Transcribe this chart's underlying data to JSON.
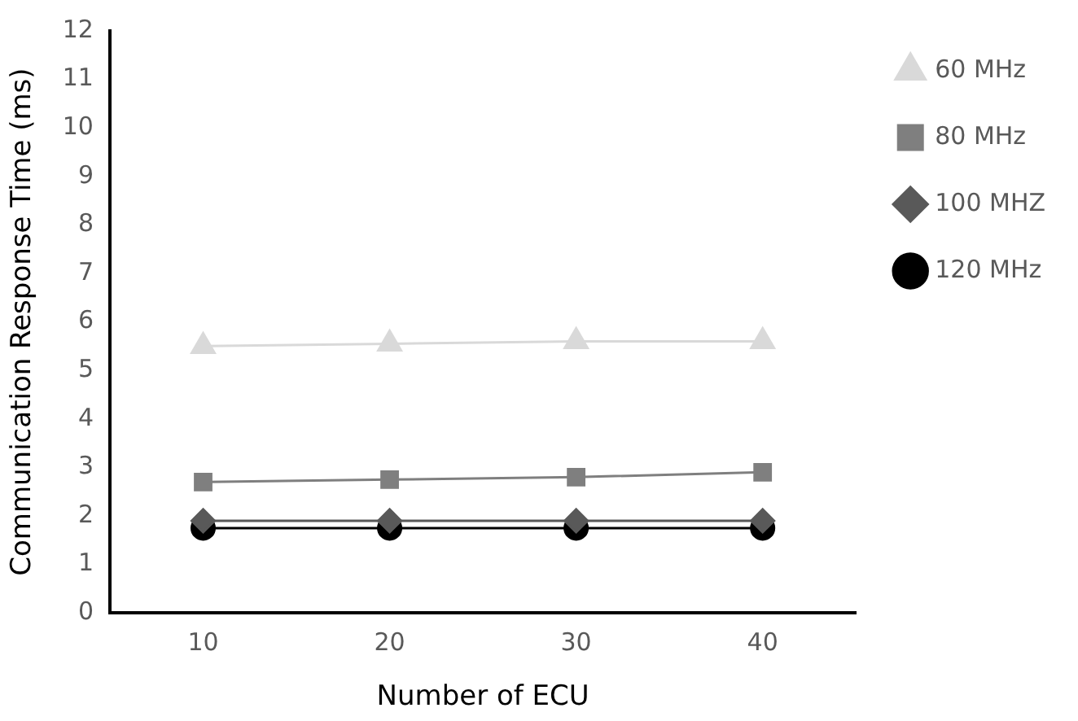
{
  "chart_data": {
    "type": "line",
    "xlabel": "Number of ECU",
    "ylabel": "Communication Response Time (ms)",
    "categories": [
      "10",
      "20",
      "30",
      "40"
    ],
    "series": [
      {
        "name": "60 MHz",
        "color": "#d9d9d9",
        "marker": "triangle",
        "values": [
          5.5,
          5.55,
          5.6,
          5.6
        ]
      },
      {
        "name": "80 MHz",
        "color": "#7f7f7f",
        "marker": "square",
        "values": [
          2.7,
          2.75,
          2.8,
          2.9
        ]
      },
      {
        "name": "100 MHZ",
        "color": "#595959",
        "marker": "diamond",
        "values": [
          1.9,
          1.9,
          1.9,
          1.9
        ]
      },
      {
        "name": "120 MHz",
        "color": "#000000",
        "marker": "circle",
        "values": [
          1.75,
          1.75,
          1.75,
          1.75
        ]
      }
    ],
    "ylim": [
      0,
      12
    ],
    "yticks": [
      0,
      1,
      2,
      3,
      4,
      5,
      6,
      7,
      8,
      9,
      10,
      11,
      12
    ],
    "grid": false,
    "legend": "top right",
    "line_style": "solid"
  }
}
